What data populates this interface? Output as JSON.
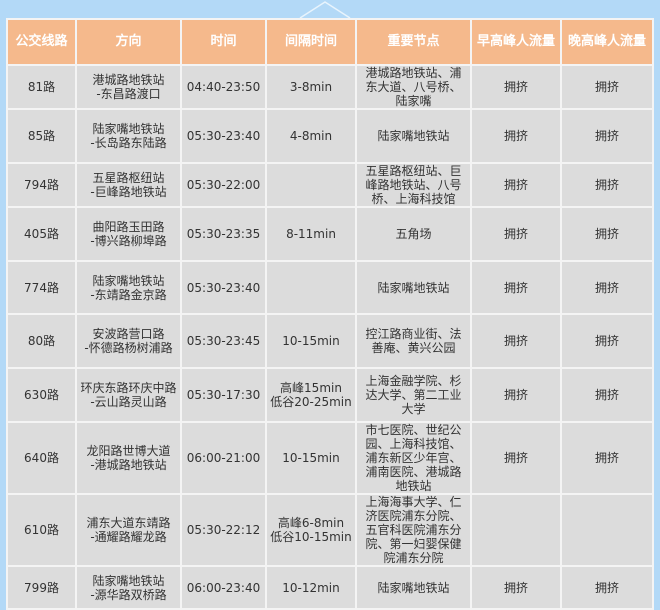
{
  "colors": {
    "background": "#b3d9f7",
    "header": "#f5b98c",
    "cell": "#dcdcdc"
  },
  "headers": [
    "公交线路",
    "方向",
    "时间",
    "间隔时间",
    "重要节点",
    "早高峰人流量",
    "晚高峰人流量"
  ],
  "rows": [
    {
      "line": "81路",
      "dir1": "港城路地铁站",
      "dir2": "-东昌路渡口",
      "time": "04:40-23:50",
      "interval1": "3-8min",
      "interval2": "",
      "nodes": "港城路地铁站、浦东大道、八号桥、陆家嘴",
      "am": "拥挤",
      "pm": "拥挤"
    },
    {
      "line": "85路",
      "dir1": "陆家嘴地铁站",
      "dir2": "-长岛路东陆路",
      "time": "05:30-23:40",
      "interval1": "4-8min",
      "interval2": "",
      "nodes": "陆家嘴地铁站",
      "am": "拥挤",
      "pm": "拥挤"
    },
    {
      "line": "794路",
      "dir1": "五星路枢纽站",
      "dir2": "-巨峰路地铁站",
      "time": "05:30-22:00",
      "interval1": "",
      "interval2": "",
      "nodes": "五星路枢纽站、巨峰路地铁站、八号桥、上海科技馆",
      "am": "拥挤",
      "pm": "拥挤"
    },
    {
      "line": "405路",
      "dir1": "曲阳路玉田路",
      "dir2": "-博兴路柳埠路",
      "time": "05:30-23:35",
      "interval1": "8-11min",
      "interval2": "",
      "nodes": "五角场",
      "am": "拥挤",
      "pm": "拥挤"
    },
    {
      "line": "774路",
      "dir1": "陆家嘴地铁站",
      "dir2": "-东靖路金京路",
      "time": "05:30-23:40",
      "interval1": "",
      "interval2": "",
      "nodes": "陆家嘴地铁站",
      "am": "拥挤",
      "pm": "拥挤"
    },
    {
      "line": "80路",
      "dir1": "安波路营口路",
      "dir2": "-怀德路杨树浦路",
      "time": "05:30-23:45",
      "interval1": "10-15min",
      "interval2": "",
      "nodes": "控江路商业街、法善庵、黄兴公园",
      "am": "拥挤",
      "pm": "拥挤"
    },
    {
      "line": "630路",
      "dir1": "环庆东路环庆中路",
      "dir2": "-云山路灵山路",
      "time": "05:30-17:30",
      "interval1": "高峰15min",
      "interval2": "低谷20-25min",
      "nodes": "上海金融学院、杉达大学、第二工业大学",
      "am": "拥挤",
      "pm": "拥挤"
    },
    {
      "line": "640路",
      "dir1": "龙阳路世博大道",
      "dir2": "-港城路地铁站",
      "time": "06:00-21:00",
      "interval1": "10-15min",
      "interval2": "",
      "nodes": "市七医院、世纪公园、上海科技馆、浦东新区少年宫、浦南医院、港城路地铁站",
      "am": "拥挤",
      "pm": "拥挤"
    },
    {
      "line": "610路",
      "dir1": "浦东大道东靖路",
      "dir2": "-通耀路耀龙路",
      "time": "05:30-22:12",
      "interval1": "高峰6-8min",
      "interval2": "低谷10-15min",
      "nodes": "上海海事大学、仁济医院浦东分院、五官科医院浦东分院、第一妇婴保健院浦东分院",
      "am": "",
      "pm": ""
    },
    {
      "line": "799路",
      "dir1": "陆家嘴地铁站",
      "dir2": "-源华路双桥路",
      "time": "06:00-23:40",
      "interval1": "10-12min",
      "interval2": "",
      "nodes": "陆家嘴地铁站",
      "am": "拥挤",
      "pm": "拥挤"
    }
  ]
}
